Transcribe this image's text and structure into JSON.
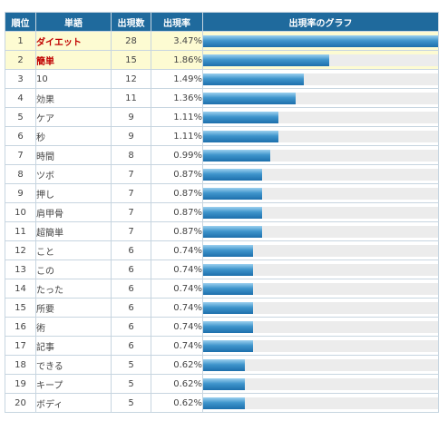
{
  "table": {
    "headers": {
      "rank": "順位",
      "word": "単語",
      "count": "出現数",
      "rate": "出現率",
      "graph": "出現率のグラフ"
    },
    "rows": [
      {
        "rank": "1",
        "word": "ダイエット",
        "count": "28",
        "rate": "3.47%",
        "highlight": true
      },
      {
        "rank": "2",
        "word": "簡単",
        "count": "15",
        "rate": "1.86%",
        "highlight": true
      },
      {
        "rank": "3",
        "word": "10",
        "count": "12",
        "rate": "1.49%",
        "highlight": false
      },
      {
        "rank": "4",
        "word": "効果",
        "count": "11",
        "rate": "1.36%",
        "highlight": false
      },
      {
        "rank": "5",
        "word": "ケア",
        "count": "9",
        "rate": "1.11%",
        "highlight": false
      },
      {
        "rank": "6",
        "word": "秒",
        "count": "9",
        "rate": "1.11%",
        "highlight": false
      },
      {
        "rank": "7",
        "word": "時間",
        "count": "8",
        "rate": "0.99%",
        "highlight": false
      },
      {
        "rank": "8",
        "word": "ツボ",
        "count": "7",
        "rate": "0.87%",
        "highlight": false
      },
      {
        "rank": "9",
        "word": "押し",
        "count": "7",
        "rate": "0.87%",
        "highlight": false
      },
      {
        "rank": "10",
        "word": "肩甲骨",
        "count": "7",
        "rate": "0.87%",
        "highlight": false
      },
      {
        "rank": "11",
        "word": "超簡単",
        "count": "7",
        "rate": "0.87%",
        "highlight": false
      },
      {
        "rank": "12",
        "word": "こと",
        "count": "6",
        "rate": "0.74%",
        "highlight": false
      },
      {
        "rank": "13",
        "word": "この",
        "count": "6",
        "rate": "0.74%",
        "highlight": false
      },
      {
        "rank": "14",
        "word": "たった",
        "count": "6",
        "rate": "0.74%",
        "highlight": false
      },
      {
        "rank": "15",
        "word": "所要",
        "count": "6",
        "rate": "0.74%",
        "highlight": false
      },
      {
        "rank": "16",
        "word": "術",
        "count": "6",
        "rate": "0.74%",
        "highlight": false
      },
      {
        "rank": "17",
        "word": "記事",
        "count": "6",
        "rate": "0.74%",
        "highlight": false
      },
      {
        "rank": "18",
        "word": "できる",
        "count": "5",
        "rate": "0.62%",
        "highlight": false
      },
      {
        "rank": "19",
        "word": "キープ",
        "count": "5",
        "rate": "0.62%",
        "highlight": false
      },
      {
        "rank": "20",
        "word": "ボディ",
        "count": "5",
        "rate": "0.62%",
        "highlight": false
      }
    ]
  },
  "chart_data": {
    "type": "bar",
    "categories": [
      "ダイエット",
      "簡単",
      "10",
      "効果",
      "ケア",
      "秒",
      "時間",
      "ツボ",
      "押し",
      "肩甲骨",
      "超簡単",
      "こと",
      "この",
      "たった",
      "所要",
      "術",
      "記事",
      "できる",
      "キープ",
      "ボディ"
    ],
    "values": [
      3.47,
      1.86,
      1.49,
      1.36,
      1.11,
      1.11,
      0.99,
      0.87,
      0.87,
      0.87,
      0.87,
      0.74,
      0.74,
      0.74,
      0.74,
      0.74,
      0.74,
      0.62,
      0.62,
      0.62
    ],
    "xlabel": "",
    "ylabel": "",
    "ylim": [
      0,
      3.47
    ]
  },
  "colors": {
    "header_bg": "#1f6a9d",
    "highlight_row_bg": "#fdfbd2",
    "highlight_text": "#c00000",
    "bar": "#2a7fbf",
    "bar_track": "#ececec"
  }
}
